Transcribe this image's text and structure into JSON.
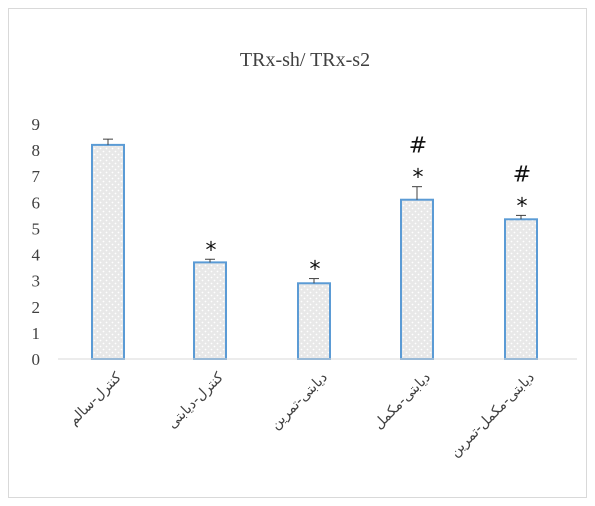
{
  "chart_data": {
    "type": "bar",
    "title": "TRx-sh/ TRx-s2",
    "categories": [
      "کنترل-سالم",
      "کنترل-دیابتی",
      "دیابتی-تمرین",
      "دیابتی-مکمل",
      "دیابتی-مکمل-تمرین"
    ],
    "values": [
      8.2,
      3.7,
      2.9,
      6.1,
      5.35
    ],
    "errors": [
      0.22,
      0.12,
      0.18,
      0.5,
      0.15
    ],
    "annotations": [
      [],
      [
        "*"
      ],
      [
        "*"
      ],
      [
        "#",
        "*"
      ],
      [
        "#",
        "*"
      ]
    ],
    "ylim": [
      0,
      9
    ],
    "yticks": [
      "0",
      "1",
      "2",
      "3",
      "4",
      "5",
      "6",
      "7",
      "8",
      "9"
    ],
    "xlabel": "",
    "ylabel": "",
    "grid": false,
    "legend": "none",
    "bar_fill": "#e8e8e8",
    "bar_stroke": "#5b9bd5",
    "dot_color": "#ffffff"
  }
}
